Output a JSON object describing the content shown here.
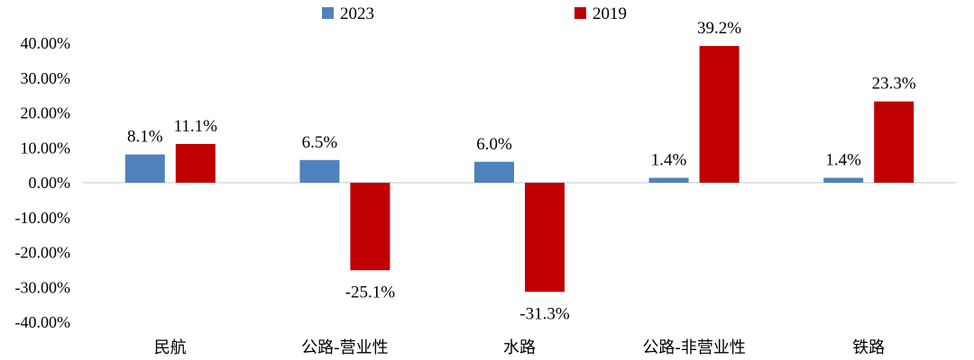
{
  "chart_data": {
    "type": "bar",
    "categories": [
      "民航",
      "公路-营业性",
      "水路",
      "公路-非营业性",
      "铁路"
    ],
    "series": [
      {
        "name": "2023",
        "values": [
          8.1,
          6.5,
          6.0,
          1.4,
          1.4
        ],
        "labels": [
          "8.1%",
          "6.5%",
          "6.0%",
          "1.4%",
          "1.4%"
        ],
        "color": "#4f81bd"
      },
      {
        "name": "2019",
        "values": [
          11.1,
          -25.1,
          -31.3,
          39.2,
          23.3
        ],
        "labels": [
          "11.1%",
          "-25.1%",
          "-31.3%",
          "39.2%",
          "23.3%"
        ],
        "color": "#c00000"
      }
    ],
    "ylim": [
      -40,
      40
    ],
    "yticks": [
      40,
      30,
      20,
      10,
      0,
      -10,
      -20,
      -30,
      -40
    ],
    "ytick_labels": [
      "40.00%",
      "30.00%",
      "20.00%",
      "10.00%",
      "0.00%",
      "-10.00%",
      "-20.00%",
      "-30.00%",
      "-40.00%"
    ],
    "legend_position": "top",
    "grid": false,
    "title": "",
    "xlabel": "",
    "ylabel": ""
  }
}
